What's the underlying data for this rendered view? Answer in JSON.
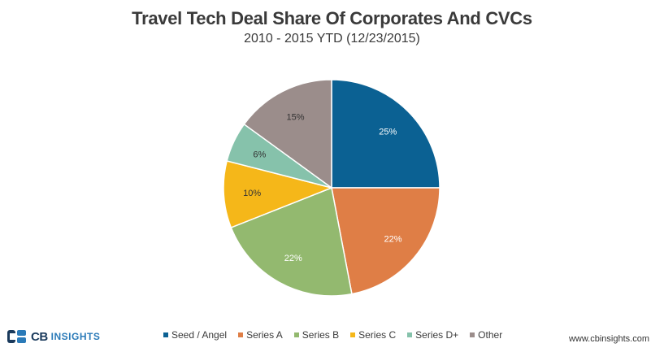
{
  "header": {
    "title": "Travel Tech Deal Share Of Corporates And CVCs",
    "subtitle": "2010 - 2015 YTD (12/23/2015)"
  },
  "chart_data": {
    "type": "pie",
    "title": "Travel Tech Deal Share Of Corporates And CVCs",
    "subtitle": "2010 - 2015 YTD (12/23/2015)",
    "slices": [
      {
        "label": "Seed / Angel",
        "value": 25,
        "display": "25%",
        "color": "#0b6193"
      },
      {
        "label": "Series A",
        "value": 22,
        "display": "22%",
        "color": "#df7e46"
      },
      {
        "label": "Series B",
        "value": 22,
        "display": "22%",
        "color": "#93b96f"
      },
      {
        "label": "Series C",
        "value": 10,
        "display": "10%",
        "color": "#f5b719"
      },
      {
        "label": "Series D+",
        "value": 6,
        "display": "6%",
        "color": "#86c2ab"
      },
      {
        "label": "Other",
        "value": 15,
        "display": "15%",
        "color": "#9b8d8b"
      }
    ],
    "legend_position": "bottom",
    "start_angle_deg": 0,
    "direction": "clockwise"
  },
  "legend": {
    "items": [
      {
        "label": "Seed / Angel",
        "color": "#0b6193"
      },
      {
        "label": "Series A",
        "color": "#df7e46"
      },
      {
        "label": "Series B",
        "color": "#93b96f"
      },
      {
        "label": "Series C",
        "color": "#f5b719"
      },
      {
        "label": "Series D+",
        "color": "#86c2ab"
      },
      {
        "label": "Other",
        "color": "#9b8d8b"
      }
    ]
  },
  "footer": {
    "logo_cb": "CB",
    "logo_insights": "INSIGHTS",
    "website": "www.cbinsights.com"
  }
}
